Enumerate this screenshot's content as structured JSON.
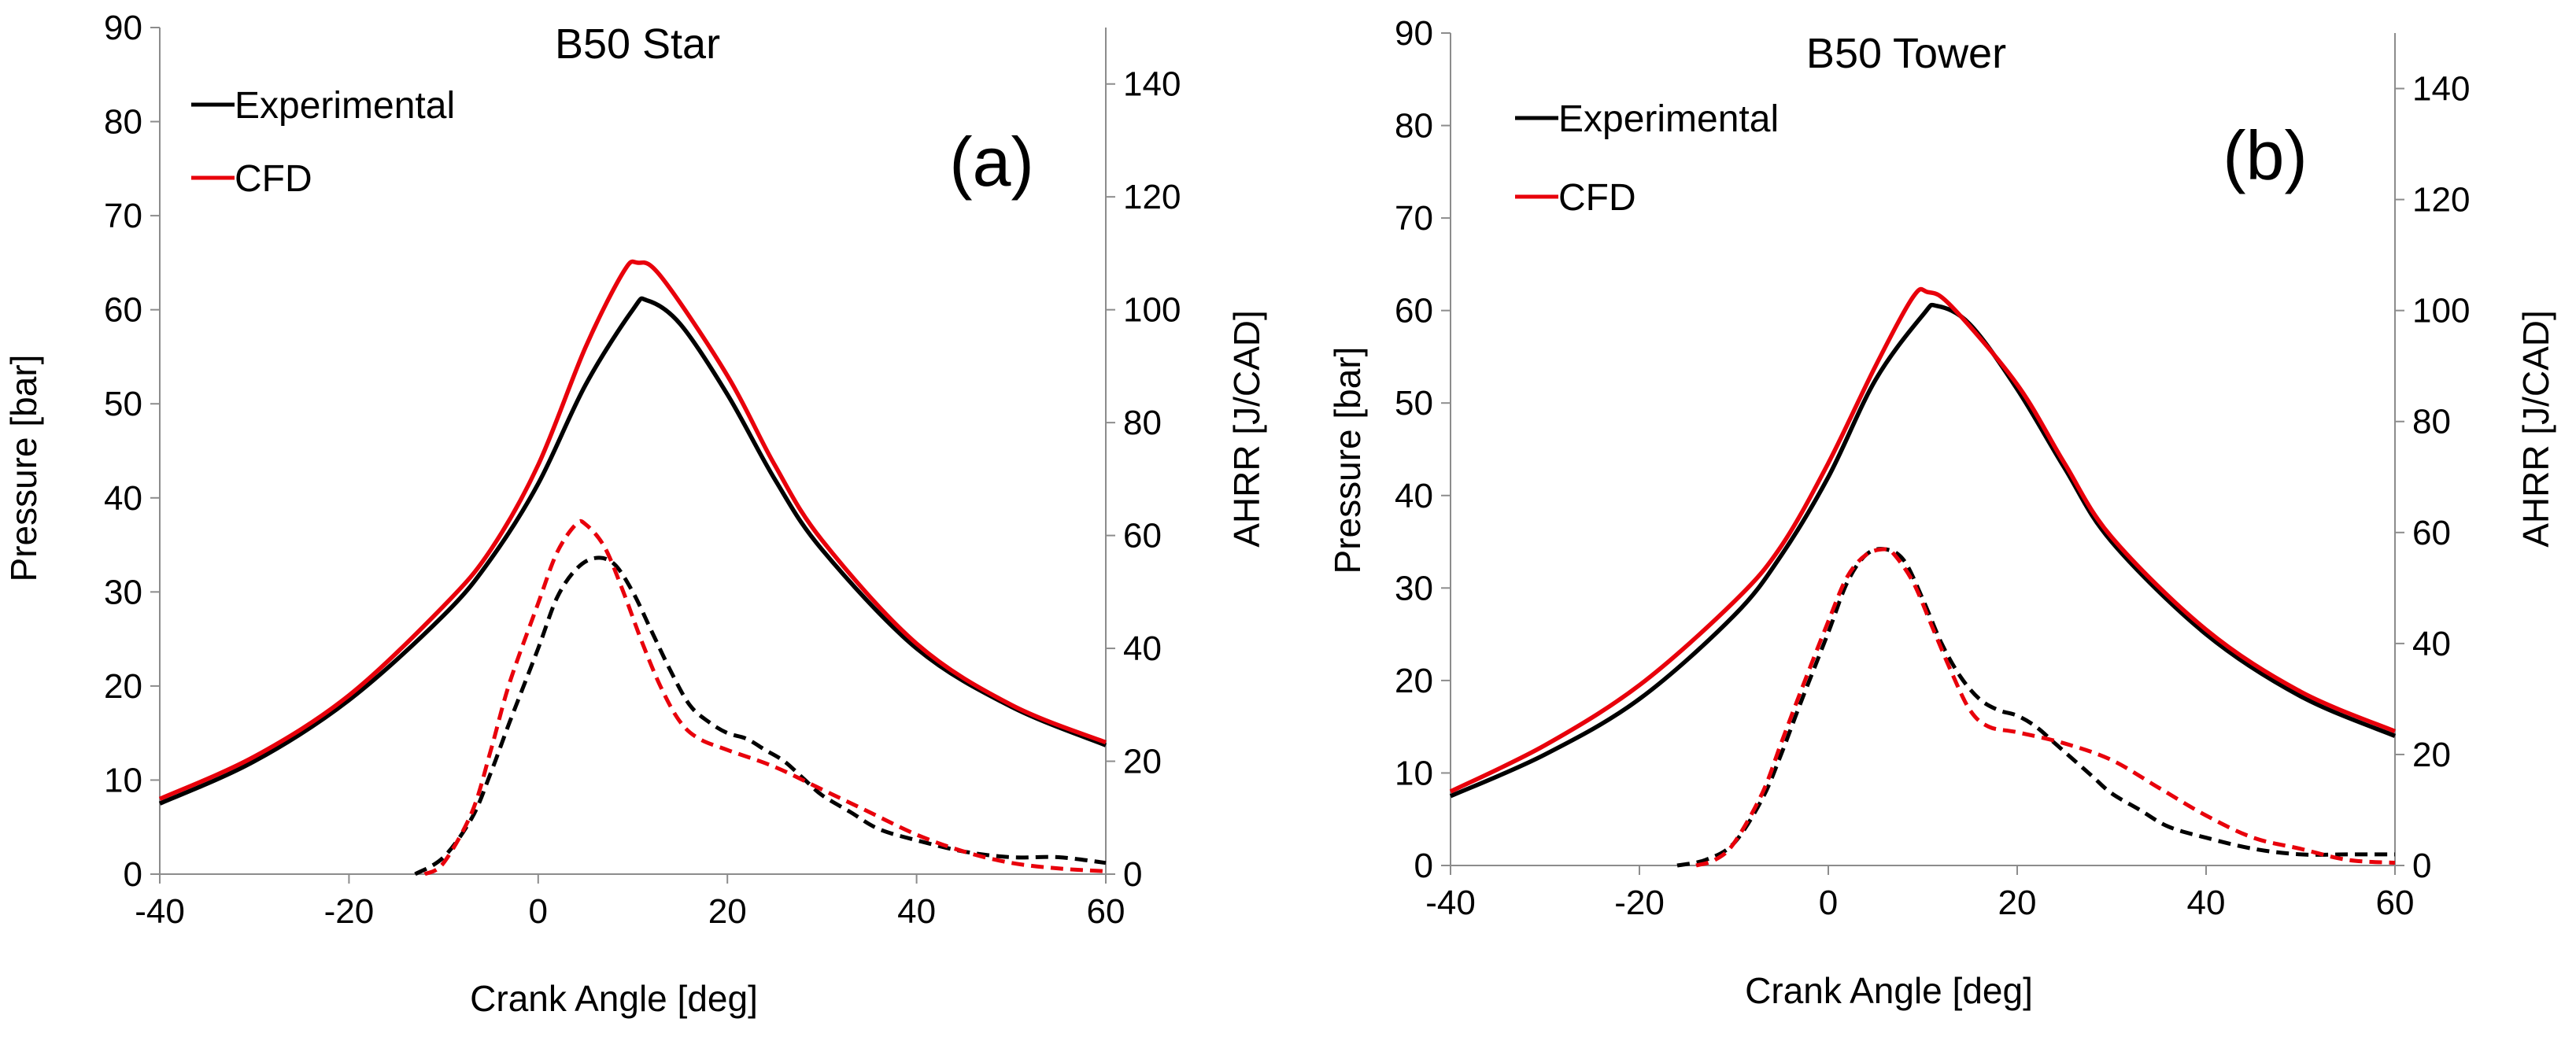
{
  "colors": {
    "experimental": "#000000",
    "cfd": "#e8000b",
    "axis": "#8c8c8c"
  },
  "chart_data": [
    {
      "type": "line",
      "panel_label": "(a)",
      "title": "B50 Star",
      "xlabel": "Crank Angle [deg]",
      "ylabel": "Pressure [bar]",
      "y2label": "AHRR [J/CAD]",
      "xlim": [
        -40,
        60
      ],
      "ylim": [
        0,
        90
      ],
      "y2lim": [
        0,
        150
      ],
      "xticks": [
        "-40",
        "-20",
        "0",
        "20",
        "40",
        "60"
      ],
      "yticks": [
        "0",
        "10",
        "20",
        "30",
        "40",
        "50",
        "60",
        "70",
        "80",
        "90"
      ],
      "y2ticks": [
        "0",
        "20",
        "40",
        "60",
        "80",
        "100",
        "120",
        "140"
      ],
      "legend": [
        "Experimental",
        "CFD"
      ],
      "series": [
        {
          "name": "Experimental",
          "kind": "pressure",
          "axis": "left",
          "dash": false,
          "x": [
            -40,
            -30,
            -20,
            -10,
            -5,
            0,
            5,
            10,
            11.5,
            15,
            20,
            25,
            30,
            40,
            50,
            60
          ],
          "values": [
            7.5,
            12,
            18.5,
            27.5,
            33.5,
            41.5,
            52,
            60,
            61,
            58.5,
            51,
            42,
            34.5,
            24,
            17.8,
            13.7
          ]
        },
        {
          "name": "CFD",
          "kind": "pressure",
          "axis": "left",
          "dash": false,
          "x": [
            -40,
            -30,
            -20,
            -10,
            -5,
            0,
            5,
            9,
            10.5,
            13,
            20,
            25,
            30,
            40,
            50,
            60
          ],
          "values": [
            8,
            12.5,
            19,
            28.5,
            34.5,
            43.5,
            56,
            64,
            65,
            63.5,
            53,
            43.5,
            35.5,
            24.5,
            18,
            14
          ]
        },
        {
          "name": "Experimental",
          "kind": "ahrr",
          "axis": "right",
          "dash": true,
          "x": [
            -13,
            -10,
            -7,
            -5,
            -3,
            0,
            2,
            4,
            6,
            8,
            10,
            12,
            14,
            16,
            18,
            20,
            22,
            24,
            26,
            28,
            30,
            33,
            36,
            40,
            45,
            50,
            55,
            60
          ],
          "values": [
            0,
            3,
            10,
            18,
            27,
            40,
            49,
            54,
            56,
            55,
            50,
            43,
            36,
            30,
            27,
            25,
            24,
            22,
            20,
            17,
            14,
            11,
            8,
            6,
            4,
            3,
            3,
            2
          ]
        },
        {
          "name": "CFD",
          "kind": "ahrr",
          "axis": "right",
          "dash": true,
          "x": [
            -12,
            -10,
            -7,
            -5,
            -3,
            0,
            2,
            4,
            5,
            7,
            9,
            11,
            13,
            15,
            17,
            20,
            25,
            30,
            35,
            40,
            45,
            50,
            55,
            60
          ],
          "values": [
            0,
            2,
            11,
            22,
            34,
            48,
            57,
            62,
            62,
            58,
            50,
            41,
            33,
            27,
            24,
            22,
            19,
            15,
            11,
            7,
            4,
            2,
            1,
            0.5
          ]
        }
      ]
    },
    {
      "type": "line",
      "panel_label": "(b)",
      "title": "B50 Tower",
      "xlabel": "Crank Angle [deg]",
      "ylabel": "Pressure [bar]",
      "y2label": "AHRR [J/CAD]",
      "xlim": [
        -40,
        60
      ],
      "ylim": [
        0,
        90
      ],
      "y2lim": [
        0,
        150
      ],
      "xticks": [
        "-40",
        "-20",
        "0",
        "20",
        "40",
        "60"
      ],
      "yticks": [
        "0",
        "10",
        "20",
        "30",
        "40",
        "50",
        "60",
        "70",
        "80",
        "90"
      ],
      "y2ticks": [
        "0",
        "20",
        "40",
        "60",
        "80",
        "100",
        "120",
        "140"
      ],
      "legend": [
        "Experimental",
        "CFD"
      ],
      "series": [
        {
          "name": "Experimental",
          "kind": "pressure",
          "axis": "left",
          "dash": false,
          "x": [
            -40,
            -30,
            -20,
            -10,
            -5,
            0,
            5,
            10,
            11.5,
            15,
            20,
            25,
            30,
            40,
            50,
            60
          ],
          "values": [
            7.5,
            12,
            18,
            27,
            33.5,
            42,
            52.5,
            59.5,
            60.5,
            58.5,
            51.5,
            43,
            35,
            25,
            18.3,
            14
          ]
        },
        {
          "name": "CFD",
          "kind": "pressure",
          "axis": "left",
          "dash": false,
          "x": [
            -40,
            -30,
            -20,
            -10,
            -5,
            0,
            5,
            9,
            10.5,
            13,
            20,
            25,
            30,
            40,
            50,
            60
          ],
          "values": [
            8,
            13,
            19.5,
            28.5,
            34.5,
            43.5,
            54,
            61.5,
            62,
            60.5,
            52,
            43.5,
            35.5,
            25.5,
            18.8,
            14.5
          ]
        },
        {
          "name": "Experimental",
          "kind": "ahrr",
          "axis": "right",
          "dash": true,
          "x": [
            -16,
            -13,
            -10,
            -7,
            -5,
            -3,
            0,
            2,
            4,
            6,
            8,
            10,
            12,
            14,
            16,
            18,
            20,
            22,
            24,
            26,
            28,
            30,
            33,
            36,
            40,
            45,
            50,
            55,
            60
          ],
          "values": [
            0,
            1,
            4,
            12,
            20,
            29,
            42,
            51,
            56,
            57,
            55,
            48,
            40,
            34,
            30,
            28,
            27,
            25,
            22,
            19,
            16,
            13,
            10,
            7,
            5,
            3,
            2,
            2,
            2
          ]
        },
        {
          "name": "CFD",
          "kind": "ahrr",
          "axis": "right",
          "dash": true,
          "x": [
            -14,
            -12,
            -10,
            -7,
            -5,
            -3,
            0,
            2,
            4,
            6,
            7,
            9,
            11,
            13,
            15,
            17,
            20,
            25,
            30,
            35,
            40,
            45,
            50,
            55,
            60
          ],
          "values": [
            0,
            1,
            4,
            13,
            22,
            31,
            44,
            52,
            56,
            57,
            56,
            51,
            43,
            35,
            28,
            25,
            24,
            22,
            19,
            14,
            9,
            5,
            3,
            1,
            0.5
          ]
        }
      ]
    }
  ]
}
